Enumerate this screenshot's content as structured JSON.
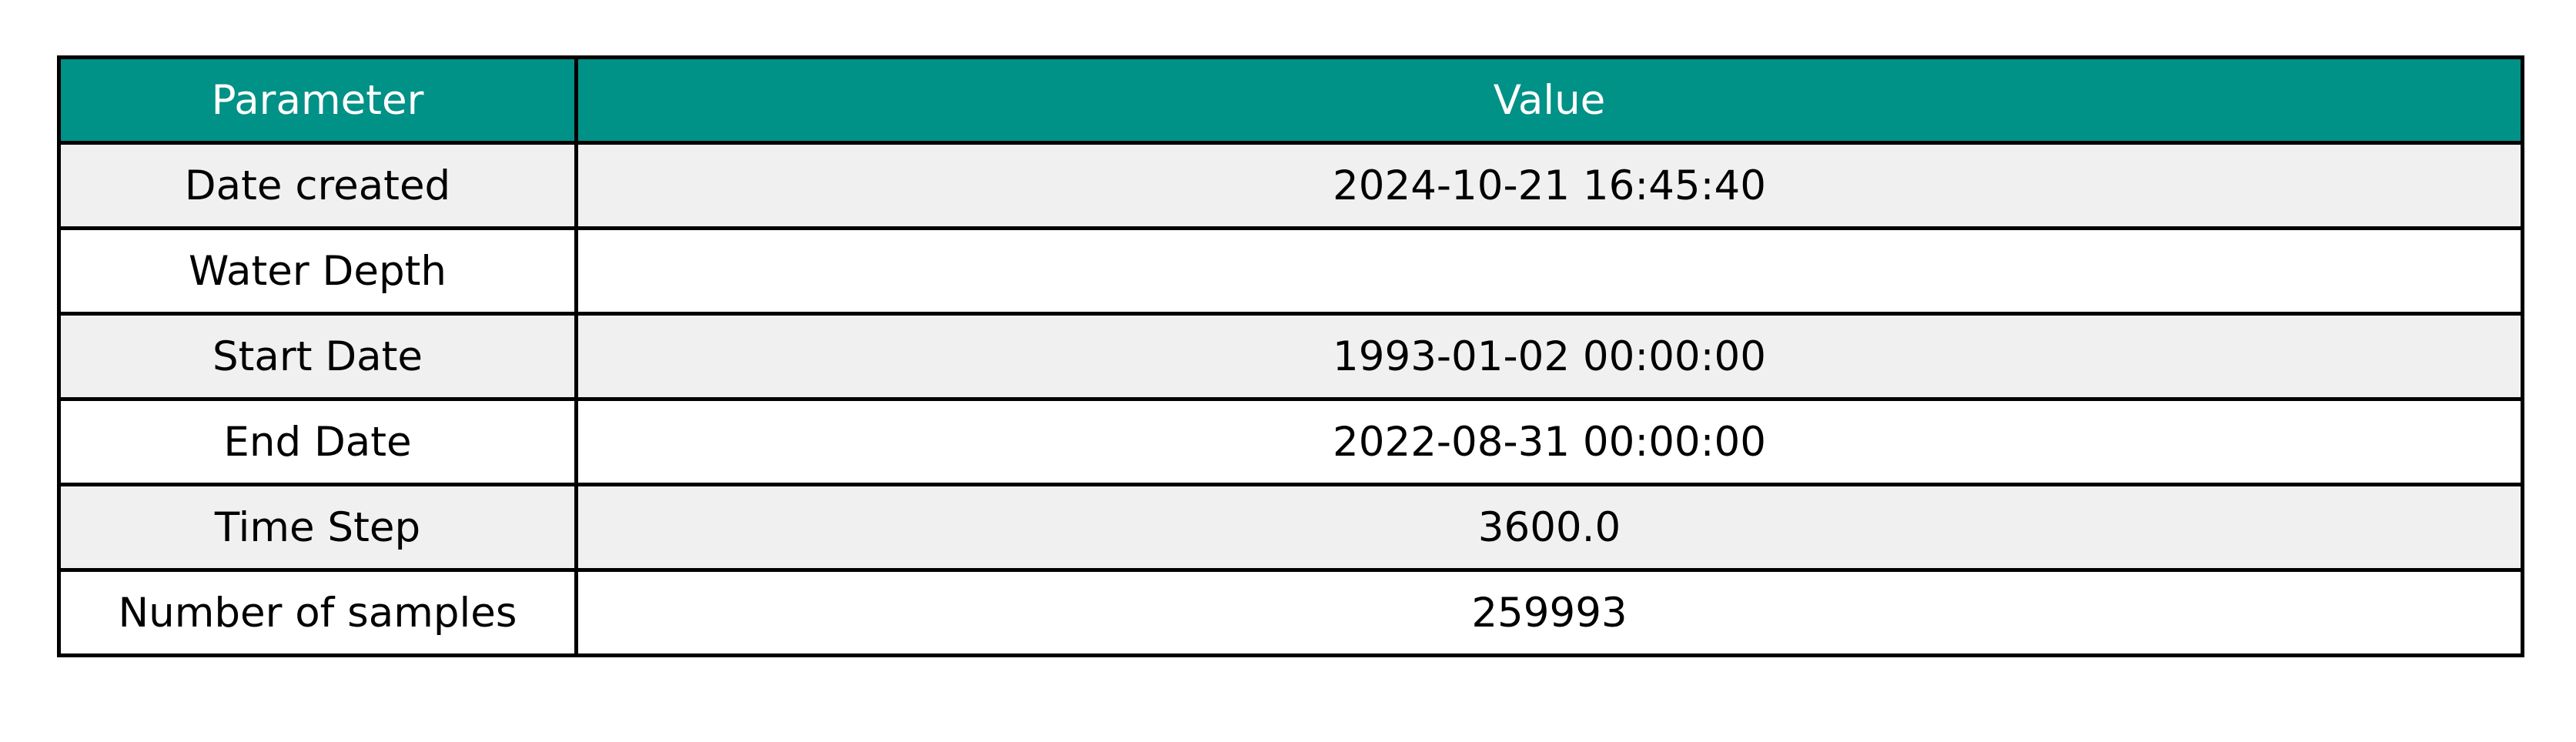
{
  "chart_data": {
    "type": "table",
    "columns": [
      "Parameter",
      "Value"
    ],
    "rows": [
      {
        "parameter": "Date created",
        "value": "2024-10-21 16:45:40"
      },
      {
        "parameter": "Water Depth",
        "value": ""
      },
      {
        "parameter": "Start Date",
        "value": "1993-01-02 00:00:00"
      },
      {
        "parameter": "End Date",
        "value": "2022-08-31 00:00:00"
      },
      {
        "parameter": "Time Step",
        "value": "3600.0"
      },
      {
        "parameter": "Number of samples",
        "value": "259993"
      }
    ],
    "colors": {
      "header_background": "#009187",
      "header_text": "#ffffff",
      "stripe_background": "#f0f0f0",
      "row_background": "#ffffff",
      "border": "#000000"
    }
  }
}
